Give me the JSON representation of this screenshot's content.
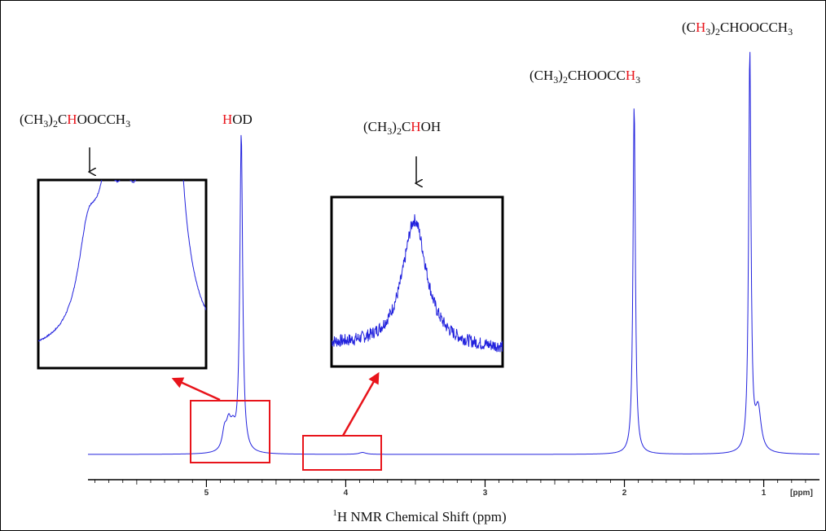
{
  "chart_data": {
    "type": "line",
    "xlabel_sup": "1",
    "xlabel": "H NMR Chemical Shift (ppm)",
    "x_unit": "[ppm]",
    "xlim": [
      5.85,
      0.6
    ],
    "x_ticks": [
      "5",
      "4",
      "3",
      "2",
      "1"
    ],
    "series": [
      {
        "peaks": [
          {
            "x": 4.87,
            "height": 0.06,
            "width": 0.02
          },
          {
            "x": 4.84,
            "height": 0.075,
            "width": 0.02
          },
          {
            "x": 4.81,
            "height": 0.055,
            "width": 0.02
          },
          {
            "x": 4.75,
            "height": 1.0,
            "width": 0.012
          },
          {
            "x": 3.88,
            "height": 0.006,
            "width": 0.03
          },
          {
            "x": 1.93,
            "height": 1.1,
            "width": 0.01
          },
          {
            "x": 1.1,
            "height": 1.26,
            "width": 0.01
          },
          {
            "x": 1.04,
            "height": 0.13,
            "width": 0.025
          }
        ]
      }
    ],
    "annotations": [
      {
        "parts": [
          [
            "(CH",
            "n"
          ],
          [
            "3",
            "s"
          ],
          [
            ")",
            "n"
          ],
          [
            "2",
            "s"
          ],
          [
            "C",
            "n"
          ],
          [
            "H",
            "r"
          ],
          [
            "OOCCH",
            "n"
          ],
          [
            "3",
            "s"
          ]
        ]
      },
      {
        "parts": [
          [
            "H",
            "r"
          ],
          [
            "OD",
            "n"
          ]
        ]
      },
      {
        "parts": [
          [
            "(CH",
            "n"
          ],
          [
            "3",
            "s"
          ],
          [
            ")",
            "n"
          ],
          [
            "2",
            "s"
          ],
          [
            "C",
            "n"
          ],
          [
            "H",
            "r"
          ],
          [
            "OH",
            "n"
          ]
        ]
      },
      {
        "parts": [
          [
            "(CH",
            "n"
          ],
          [
            "3",
            "s"
          ],
          [
            ")",
            "n"
          ],
          [
            "2",
            "s"
          ],
          [
            "CHOOCC",
            "n"
          ],
          [
            "H",
            "r"
          ],
          [
            "3",
            "s"
          ]
        ]
      },
      {
        "parts": [
          [
            "(C",
            "n"
          ],
          [
            "H",
            "r"
          ],
          [
            "3",
            "s"
          ],
          [
            ")",
            "n"
          ],
          [
            "2",
            "s"
          ],
          [
            "CHOOCCH",
            "n"
          ],
          [
            "3",
            "s"
          ]
        ]
      }
    ],
    "insets": [
      {
        "name": "ester-methine-inset",
        "x_range": [
          4.95,
          4.68
        ],
        "series": "ester-methine"
      },
      {
        "name": "alcohol-methine-inset",
        "x_range": [
          4.05,
          3.7
        ],
        "series": "alcohol-methine"
      }
    ]
  },
  "colors": {
    "spectrum": "#2222dd",
    "highlight": "#e8141b",
    "axis": "#000000",
    "text": "#111111"
  }
}
